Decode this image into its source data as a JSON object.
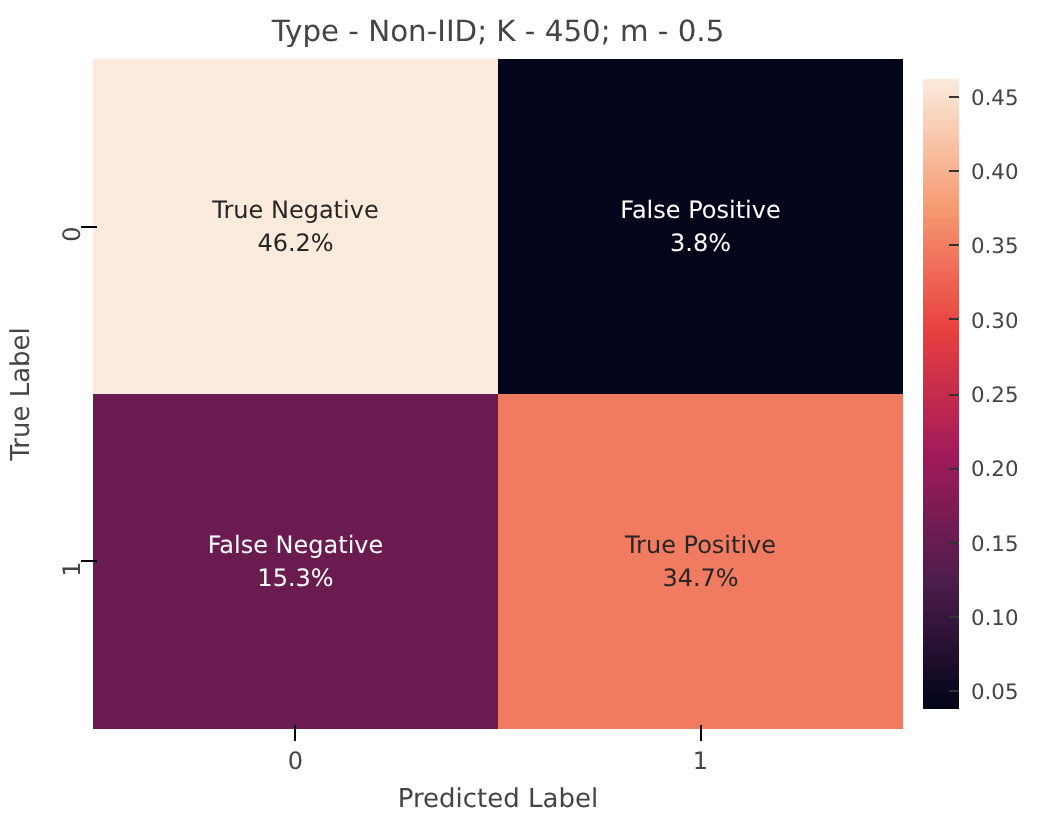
{
  "chart_data": {
    "type": "heatmap",
    "title": "Type - Non-IID; K - 450; m - 0.5",
    "xlabel": "Predicted Label",
    "ylabel": "True Label",
    "categories": [
      "0",
      "1"
    ],
    "y_categories": [
      "0",
      "1"
    ],
    "cells": [
      [
        0.462,
        0.038
      ],
      [
        0.153,
        0.347
      ]
    ],
    "cell_labels": [
      [
        "True Negative\n46.2%",
        "False Positive\n3.8%"
      ],
      [
        "False Negative\n15.3%",
        "True Positive\n34.7%"
      ]
    ],
    "clim": [
      0.038,
      0.462
    ],
    "cticks": [
      0.05,
      {
        "value": 0.1,
        "label": "0.10"
      },
      0.15,
      {
        "value": 0.2,
        "label": "0.20"
      },
      0.25,
      {
        "value": 0.3,
        "label": "0.30"
      },
      0.35,
      {
        "value": 0.4,
        "label": "0.40"
      },
      0.45
    ]
  }
}
